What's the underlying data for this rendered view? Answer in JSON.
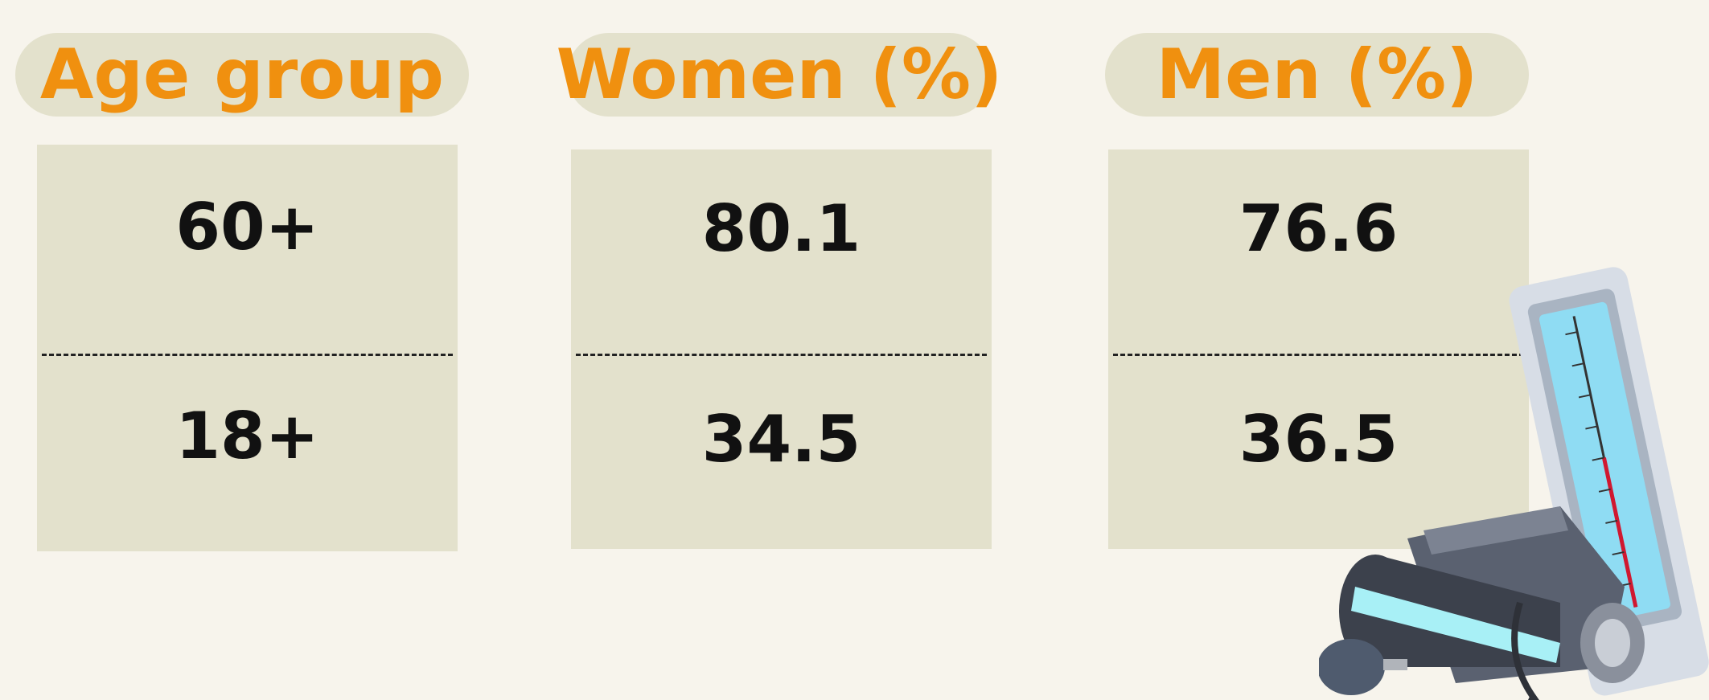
{
  "table": {
    "header": [
      "Age group",
      "Women (%)",
      "Men (%)"
    ],
    "rows": [
      [
        "60+",
        "80.1",
        "76.6"
      ],
      [
        "18+",
        "34.5",
        "36.5"
      ]
    ]
  }
}
